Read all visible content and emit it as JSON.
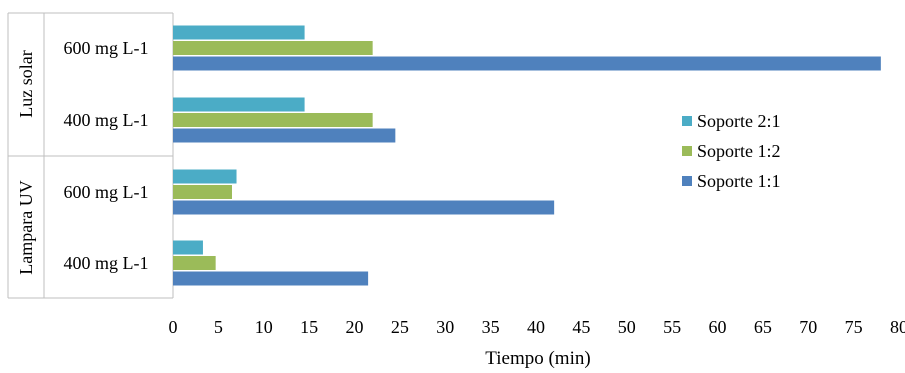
{
  "chart_data": {
    "type": "bar",
    "orientation": "horizontal",
    "title": "",
    "xlabel": "Tiempo (min)",
    "ylabel": "",
    "xlim": [
      0,
      80
    ],
    "x_ticks": [
      "0",
      "5",
      "10",
      "15",
      "20",
      "25",
      "30",
      "35",
      "40",
      "45",
      "50",
      "55",
      "60",
      "65",
      "70",
      "75",
      "80"
    ],
    "grid": false,
    "legend_position": "right",
    "groups": [
      {
        "label": "Luz solar",
        "categories": [
          "600 mg L-1",
          "400 mg L-1"
        ]
      },
      {
        "label": "Lampara UV",
        "categories": [
          "600 mg L-1",
          "400 mg L-1"
        ]
      }
    ],
    "categories": [
      "Luz solar 600 mg L-1",
      "Luz solar 400 mg L-1",
      "Lampara UV 600 mg L-1",
      "Lampara UV 400 mg L-1"
    ],
    "series": [
      {
        "name": "Soporte 2:1",
        "color": "#4bacc6",
        "values": [
          14.5,
          14.5,
          7,
          3.3
        ]
      },
      {
        "name": "Soporte 1:2",
        "color": "#9bbb59",
        "values": [
          22,
          22,
          6.5,
          4.7
        ]
      },
      {
        "name": "Soporte 1:1",
        "color": "#4f81bd",
        "values": [
          78,
          24.5,
          42,
          21.5
        ]
      }
    ]
  }
}
